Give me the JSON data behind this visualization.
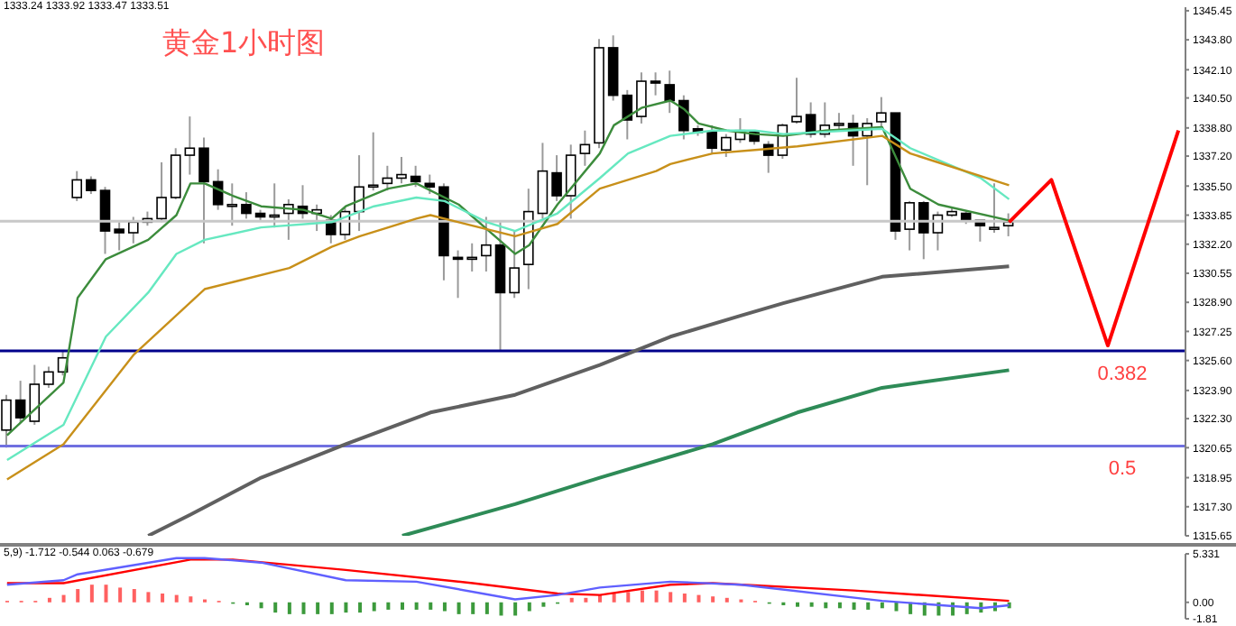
{
  "chart_data": [
    {
      "type": "candlestick",
      "title": "黄金1小时图",
      "annotations": [
        "1333.24 1333.92 1333.47 1333.51",
        {
          "text": "0.382",
          "y": 1326.15
        },
        {
          "text": "0.5",
          "y": 1320.75
        }
      ],
      "tick_labels": "y",
      "categories": [
        null,
        null,
        null,
        null,
        null,
        null,
        null,
        null,
        null,
        null,
        null,
        null,
        null,
        null,
        null,
        null,
        null,
        null,
        null,
        null,
        null,
        null,
        null,
        null,
        null,
        null,
        null,
        null,
        null,
        null,
        null,
        null,
        null,
        null,
        null,
        null,
        null,
        null,
        null,
        null,
        null,
        null,
        null,
        null,
        null,
        null,
        null,
        null,
        null,
        null,
        null,
        null,
        null,
        null,
        null,
        null,
        null,
        null,
        null,
        null,
        null,
        null,
        null,
        null,
        null,
        null,
        null,
        null,
        null,
        null,
        null,
        null,
        null,
        null,
        null,
        null,
        null,
        null,
        null,
        null,
        null,
        null,
        null,
        null
      ],
      "ohlc": [
        [
          1321.65,
          1323.65,
          1320.65,
          1323.35
        ],
        [
          1323.35,
          1324.45,
          1322.05,
          1322.35
        ],
        [
          1322.15,
          1325.35,
          1321.95,
          1324.25
        ],
        [
          1324.25,
          1325.25,
          1324.05,
          1324.95
        ],
        [
          1324.95,
          1326.15,
          1324.75,
          1325.75
        ],
        [
          1334.85,
          1336.35,
          1334.65,
          1335.85
        ],
        [
          1335.85,
          1336.05,
          1335.05,
          1335.25
        ],
        [
          1335.25,
          1335.45,
          1331.65,
          1332.95
        ],
        [
          1333.05,
          1333.45,
          1331.85,
          1332.85
        ],
        [
          1332.85,
          1333.75,
          1332.25,
          1333.45
        ],
        [
          1333.45,
          1334.05,
          1333.25,
          1333.65
        ],
        [
          1333.65,
          1336.85,
          1333.45,
          1334.85
        ],
        [
          1334.85,
          1337.65,
          1334.75,
          1337.25
        ],
        [
          1337.25,
          1339.45,
          1336.15,
          1337.65
        ],
        [
          1337.65,
          1338.25,
          1332.25,
          1335.75
        ],
        [
          1335.75,
          1336.45,
          1334.15,
          1334.45
        ],
        [
          1334.45,
          1335.65,
          1333.25,
          1334.45
        ],
        [
          1334.45,
          1335.15,
          1333.65,
          1333.95
        ],
        [
          1333.95,
          1334.15,
          1333.55,
          1333.75
        ],
        [
          1333.75,
          1335.65,
          1333.15,
          1333.85
        ],
        [
          1333.95,
          1334.75,
          1332.45,
          1334.45
        ],
        [
          1334.35,
          1335.55,
          1333.65,
          1333.95
        ],
        [
          1333.95,
          1334.45,
          1332.95,
          1334.15
        ],
        [
          1333.55,
          1333.85,
          1332.25,
          1332.75
        ],
        [
          1332.75,
          1334.25,
          1332.45,
          1334.05
        ],
        [
          1334.05,
          1337.25,
          1332.95,
          1335.45
        ],
        [
          1335.45,
          1338.55,
          1335.25,
          1335.55
        ],
        [
          1335.65,
          1336.65,
          1335.25,
          1335.95
        ],
        [
          1335.95,
          1337.15,
          1335.65,
          1336.15
        ],
        [
          1336.05,
          1336.65,
          1335.45,
          1335.75
        ],
        [
          1335.65,
          1336.15,
          1335.05,
          1335.45
        ],
        [
          1335.45,
          1335.65,
          1330.15,
          1331.55
        ],
        [
          1331.45,
          1331.85,
          1329.15,
          1331.35
        ],
        [
          1331.35,
          1332.25,
          1330.65,
          1331.45
        ],
        [
          1331.55,
          1333.75,
          1330.65,
          1332.15
        ],
        [
          1332.15,
          1333.45,
          1326.15,
          1329.45
        ],
        [
          1329.45,
          1332.95,
          1329.15,
          1330.85
        ],
        [
          1331.05,
          1335.35,
          1329.65,
          1334.05
        ],
        [
          1333.95,
          1337.95,
          1333.65,
          1336.35
        ],
        [
          1336.25,
          1337.25,
          1334.65,
          1334.95
        ],
        [
          1334.95,
          1337.85,
          1333.65,
          1337.25
        ],
        [
          1337.35,
          1338.65,
          1336.65,
          1337.85
        ],
        [
          1337.95,
          1343.85,
          1337.65,
          1343.35
        ],
        [
          1343.35,
          1344.05,
          1340.35,
          1340.65
        ],
        [
          1340.65,
          1340.95,
          1338.15,
          1339.25
        ],
        [
          1339.45,
          1341.95,
          1339.05,
          1341.45
        ],
        [
          1341.45,
          1341.95,
          1340.65,
          1341.35
        ],
        [
          1341.25,
          1342.05,
          1339.65,
          1340.35
        ],
        [
          1340.35,
          1340.65,
          1338.15,
          1338.65
        ],
        [
          1338.75,
          1338.95,
          1338.35,
          1338.55
        ],
        [
          1338.55,
          1338.95,
          1337.35,
          1337.65
        ],
        [
          1337.55,
          1338.45,
          1337.15,
          1338.25
        ],
        [
          1338.15,
          1339.35,
          1337.95,
          1338.65
        ],
        [
          1338.55,
          1338.65,
          1337.85,
          1338.05
        ],
        [
          1337.85,
          1338.05,
          1336.25,
          1337.25
        ],
        [
          1337.25,
          1339.05,
          1337.05,
          1338.95
        ],
        [
          1339.15,
          1341.65,
          1339.05,
          1339.45
        ],
        [
          1339.55,
          1340.25,
          1338.25,
          1338.45
        ],
        [
          1338.45,
          1340.25,
          1338.25,
          1338.95
        ],
        [
          1339.05,
          1339.65,
          1338.65,
          1339.05
        ],
        [
          1339.05,
          1339.55,
          1336.65,
          1338.35
        ],
        [
          1338.35,
          1339.35,
          1335.55,
          1339.05
        ],
        [
          1339.15,
          1340.55,
          1338.85,
          1339.65
        ],
        [
          1339.65,
          1339.65,
          1332.45,
          1332.95
        ],
        [
          1333.05,
          1334.65,
          1331.85,
          1334.55
        ],
        [
          1334.55,
          1334.65,
          1331.35,
          1332.85
        ],
        [
          1332.85,
          1334.05,
          1331.85,
          1333.85
        ],
        [
          1333.85,
          1334.25,
          1333.75,
          1334.05
        ],
        [
          1333.95,
          1334.05,
          1333.35,
          1333.55
        ],
        [
          1333.55,
          1333.55,
          1332.35,
          1333.25
        ],
        [
          1333.15,
          1335.65,
          1332.85,
          1333.15
        ],
        [
          1333.25,
          1333.95,
          1332.65,
          1333.45
        ],
        null,
        null,
        null,
        null,
        null,
        null,
        null,
        null,
        null,
        null,
        null,
        null
      ],
      "series": [
        {
          "type": "line",
          "color": "#3c8c3c",
          "values": [
            1321.35,
            null,
            null,
            null,
            1324.35,
            1329.15,
            null,
            1331.35,
            null,
            null,
            1332.45,
            null,
            1333.85,
            1335.65,
            1335.65,
            null,
            1334.95,
            null,
            1334.35,
            null,
            null,
            1334.15,
            null,
            1333.65,
            1334.35,
            null,
            null,
            1335.35,
            null,
            1335.65,
            null,
            null,
            1334.45,
            null,
            null,
            null,
            1331.65,
            1332.15,
            null,
            1334.45,
            null,
            null,
            1337.35,
            1338.95,
            null,
            1339.95,
            null,
            1340.35,
            1339.85,
            1339.05,
            null,
            1338.65,
            null,
            1338.45,
            null,
            1338.35,
            null,
            null,
            1338.65,
            null,
            null,
            null,
            1338.85,
            null,
            1335.35,
            null,
            1334.45,
            null,
            null,
            null,
            null,
            1333.55,
            null,
            null,
            null,
            null,
            null,
            null,
            null,
            null,
            null,
            null,
            null,
            null
          ]
        },
        {
          "type": "line",
          "color": "#66e8c0",
          "values": [
            1319.95,
            null,
            null,
            null,
            1321.95,
            null,
            null,
            1326.95,
            null,
            null,
            1329.45,
            null,
            1331.65,
            null,
            1332.45,
            null,
            null,
            null,
            1333.15,
            null,
            null,
            null,
            null,
            1333.45,
            null,
            null,
            1334.35,
            null,
            null,
            1334.85,
            null,
            1334.65,
            null,
            null,
            1333.45,
            null,
            1332.95,
            null,
            null,
            1333.95,
            null,
            null,
            1335.95,
            null,
            1337.35,
            null,
            null,
            1338.35,
            null,
            null,
            1338.65,
            null,
            null,
            1338.65,
            null,
            1338.45,
            null,
            null,
            null,
            null,
            null,
            null,
            1338.75,
            null,
            1337.65,
            null,
            null,
            null,
            null,
            1335.95,
            null,
            1334.75,
            null,
            null,
            null,
            null,
            null,
            null,
            null,
            null,
            null,
            null,
            null,
            null
          ]
        },
        {
          "type": "line",
          "color": "#c8901a",
          "values": [
            1318.85,
            null,
            null,
            null,
            1320.85,
            null,
            null,
            null,
            null,
            1325.95,
            null,
            null,
            null,
            null,
            1329.65,
            null,
            1330.05,
            null,
            null,
            null,
            1330.85,
            null,
            null,
            1332.05,
            null,
            1332.65,
            null,
            null,
            null,
            1333.65,
            1333.85,
            null,
            1333.45,
            null,
            null,
            null,
            1332.65,
            null,
            null,
            1333.35,
            null,
            null,
            1335.35,
            null,
            null,
            null,
            1336.35,
            1336.75,
            null,
            null,
            1337.35,
            null,
            null,
            1337.55,
            null,
            null,
            1337.75,
            null,
            null,
            null,
            null,
            null,
            1338.35,
            null,
            1337.35,
            null,
            null,
            null,
            null,
            null,
            null,
            1335.55,
            null,
            null,
            null,
            null,
            null,
            null,
            null,
            null,
            null,
            null,
            null,
            null
          ]
        },
        {
          "type": "line",
          "color": "#606060",
          "values": [
            null,
            null,
            null,
            null,
            null,
            null,
            null,
            null,
            null,
            null,
            1315.65,
            null,
            null,
            1316.85,
            null,
            null,
            null,
            null,
            1318.95,
            null,
            null,
            null,
            null,
            null,
            1320.85,
            null,
            null,
            null,
            null,
            null,
            1322.65,
            null,
            null,
            null,
            null,
            null,
            1323.65,
            null,
            null,
            null,
            null,
            null,
            1325.35,
            null,
            null,
            null,
            null,
            1326.95,
            null,
            null,
            null,
            null,
            1328.15,
            null,
            null,
            1328.85,
            null,
            null,
            null,
            null,
            null,
            null,
            1330.35,
            null,
            null,
            null,
            null,
            null,
            null,
            null,
            null,
            1330.95,
            null,
            null,
            null,
            null,
            null,
            null,
            null,
            null,
            null,
            null,
            null,
            null
          ]
        },
        {
          "type": "line",
          "color": "#2e8b57",
          "values": [
            null,
            null,
            null,
            null,
            null,
            null,
            null,
            null,
            null,
            null,
            null,
            null,
            null,
            null,
            null,
            null,
            null,
            null,
            null,
            null,
            null,
            null,
            null,
            null,
            null,
            null,
            null,
            null,
            1315.65,
            null,
            null,
            null,
            null,
            null,
            null,
            null,
            1317.45,
            null,
            null,
            null,
            null,
            null,
            1318.95,
            null,
            null,
            null,
            null,
            null,
            null,
            null,
            1320.85,
            null,
            null,
            null,
            null,
            null,
            1322.65,
            null,
            null,
            null,
            null,
            null,
            1324.05,
            null,
            null,
            null,
            null,
            null,
            null,
            null,
            null,
            1325.05,
            null,
            null,
            null,
            null,
            null,
            null,
            null,
            null,
            null,
            null,
            null,
            null
          ]
        },
        {
          "type": "line",
          "color": "#ff0000",
          "values": [
            null,
            null,
            null,
            null,
            null,
            null,
            null,
            null,
            null,
            null,
            null,
            null,
            null,
            null,
            null,
            null,
            null,
            null,
            null,
            null,
            null,
            null,
            null,
            null,
            null,
            null,
            null,
            null,
            null,
            null,
            null,
            null,
            null,
            null,
            null,
            null,
            null,
            null,
            null,
            null,
            null,
            null,
            null,
            null,
            null,
            null,
            null,
            null,
            null,
            null,
            null,
            null,
            null,
            null,
            null,
            null,
            null,
            null,
            null,
            null,
            null,
            null,
            null,
            null,
            null,
            null,
            null,
            null,
            null,
            null,
            null,
            1333.45,
            null,
            null,
            1335.85,
            null,
            null,
            null,
            1326.45,
            null,
            null,
            null,
            null,
            1338.65
          ]
        }
      ],
      "ylim": [
        1315.65,
        1345.65
      ],
      "yticks": [
        1345.45,
        {
          "value": 1343.8,
          "label": "1343.80"
        },
        {
          "value": 1342.1,
          "label": "1342.10"
        },
        {
          "value": 1340.5,
          "label": "1340.50"
        },
        {
          "value": 1338.8,
          "label": "1338.80"
        },
        {
          "value": 1337.2,
          "label": "1337.20"
        },
        {
          "value": 1335.5,
          "label": "1335.50"
        },
        1333.85,
        {
          "value": 1332.2,
          "label": "1332.20"
        },
        1330.55,
        {
          "value": 1328.9,
          "label": "1328.90"
        },
        1327.25,
        {
          "value": 1325.6,
          "label": "1325.60"
        },
        {
          "value": 1323.9,
          "label": "1323.90"
        },
        {
          "value": 1322.3,
          "label": "1322.30"
        },
        1320.65,
        1318.95,
        {
          "value": 1317.3,
          "label": "1317.30"
        },
        1315.65
      ],
      "ref_lines": [
        {
          "axis": "y",
          "value": 1333.51,
          "color": "#c8c8c8"
        },
        {
          "axis": "y",
          "value": 1326.15,
          "color": "#00008b"
        },
        {
          "axis": "y",
          "value": 1320.75,
          "color": "#7070e0"
        }
      ]
    },
    {
      "type": "bar",
      "annotations": [
        "5,9) -1.712 -0.544 0.063 -0.679"
      ],
      "tick_labels": "y",
      "categories": [
        null,
        null,
        null,
        null,
        null,
        null,
        null,
        null,
        null,
        null,
        null,
        null,
        null,
        null,
        null,
        null,
        null,
        null,
        null,
        null,
        null,
        null,
        null,
        null,
        null,
        null,
        null,
        null,
        null,
        null,
        null,
        null,
        null,
        null,
        null,
        null,
        null,
        null,
        null,
        null,
        null,
        null,
        null,
        null,
        null,
        null,
        null,
        null,
        null,
        null,
        null,
        null,
        null,
        null,
        null,
        null,
        null,
        null,
        null,
        null,
        null,
        null,
        null,
        null,
        null,
        null,
        null,
        null,
        null,
        null,
        null,
        null,
        null,
        null,
        null,
        null,
        null,
        null,
        null,
        null,
        null,
        null,
        null,
        null
      ],
      "series": [
        {
          "type": "bar",
          "values": [
            0.16,
            0.16,
            0.16,
            0.49,
            0.81,
            1.46,
            1.94,
            1.94,
            1.62,
            1.46,
            1.13,
            0.97,
            0.81,
            0.65,
            0.32,
            0.16,
            -0.16,
            -0.32,
            -0.65,
            -1.13,
            -1.3,
            -1.3,
            -1.3,
            -1.3,
            -1.13,
            -1.13,
            -0.97,
            -0.81,
            -0.81,
            -0.81,
            -0.81,
            -0.97,
            -1.3,
            -1.3,
            -1.3,
            -1.46,
            -1.46,
            -0.97,
            -0.49,
            -0.16,
            0.49,
            0.49,
            0.81,
            0.97,
            1.13,
            1.3,
            1.3,
            1.13,
            0.97,
            0.81,
            0.65,
            0.49,
            0.32,
            0.16,
            -0.16,
            -0.32,
            -0.49,
            -0.49,
            -0.65,
            -0.65,
            -0.81,
            -0.81,
            -0.65,
            -0.97,
            -1.3,
            -1.46,
            -1.46,
            -1.46,
            -1.3,
            -1.13,
            -0.97,
            -0.65,
            null,
            null,
            null,
            null,
            null,
            null,
            null,
            null,
            null,
            null,
            null,
            null
          ],
          "colors": [
            "#ff6060",
            "#ff6060",
            "#ff6060",
            "#ff6060",
            "#ff6060",
            "#ff6060",
            "#ff6060",
            "#ff6060",
            "#ff6060",
            "#ff6060",
            "#ff6060",
            "#ff6060",
            "#ff6060",
            "#ff6060",
            "#ff6060",
            "#ff6060",
            "#3c9a3c",
            "#3c9a3c",
            "#3c9a3c",
            "#3c9a3c",
            "#3c9a3c",
            "#3c9a3c",
            "#3c9a3c",
            "#3c9a3c",
            "#3c9a3c",
            "#3c9a3c",
            "#3c9a3c",
            "#3c9a3c",
            "#3c9a3c",
            "#3c9a3c",
            "#3c9a3c",
            "#3c9a3c",
            "#3c9a3c",
            "#3c9a3c",
            "#3c9a3c",
            "#3c9a3c",
            "#3c9a3c",
            "#3c9a3c",
            "#3c9a3c",
            "#3c9a3c",
            "#ff6060",
            "#ff6060",
            "#ff6060",
            "#ff6060",
            "#ff6060",
            "#ff6060",
            "#ff6060",
            "#ff6060",
            "#ff6060",
            "#ff6060",
            "#ff6060",
            "#ff6060",
            "#ff6060",
            "#ff6060",
            "#3c9a3c",
            "#3c9a3c",
            "#3c9a3c",
            "#3c9a3c",
            "#3c9a3c",
            "#3c9a3c",
            "#3c9a3c",
            "#3c9a3c",
            "#3c9a3c",
            "#3c9a3c",
            "#3c9a3c",
            "#3c9a3c",
            "#3c9a3c",
            "#3c9a3c",
            "#3c9a3c",
            "#3c9a3c",
            "#3c9a3c",
            "#3c9a3c",
            "#3c9a3c",
            "#3c9a3c",
            "#3c9a3c",
            "#3c9a3c",
            "#3c9a3c",
            "#3c9a3c",
            "#3c9a3c",
            "#3c9a3c",
            "#3c9a3c",
            "#3c9a3c",
            "#3c9a3c",
            "#3c9a3c"
          ]
        },
        {
          "type": "line",
          "color": "#ff0000",
          "values": [
            2.11,
            null,
            null,
            null,
            2.11,
            null,
            null,
            null,
            null,
            null,
            null,
            null,
            null,
            4.7,
            null,
            null,
            4.7,
            null,
            null,
            null,
            null,
            null,
            null,
            null,
            3.56,
            null,
            null,
            null,
            null,
            null,
            null,
            null,
            null,
            2.11,
            null,
            null,
            null,
            null,
            null,
            0.97,
            null,
            null,
            0.81,
            null,
            null,
            null,
            null,
            1.94,
            null,
            null,
            2.11,
            null,
            null,
            null,
            null,
            null,
            null,
            null,
            null,
            null,
            1.3,
            null,
            null,
            null,
            null,
            null,
            null,
            null,
            null,
            null,
            null,
            0.16,
            null,
            null,
            null,
            null,
            null,
            null,
            null,
            null,
            null,
            null,
            null,
            null
          ]
        },
        {
          "type": "line",
          "color": "#6060ff",
          "values": [
            1.94,
            null,
            null,
            null,
            2.43,
            3.08,
            null,
            null,
            null,
            null,
            null,
            null,
            4.86,
            null,
            4.86,
            null,
            null,
            null,
            4.37,
            null,
            null,
            null,
            null,
            null,
            2.43,
            null,
            null,
            null,
            null,
            2.27,
            null,
            null,
            null,
            null,
            null,
            null,
            0.32,
            null,
            null,
            0.81,
            null,
            null,
            1.62,
            null,
            null,
            null,
            null,
            2.27,
            null,
            null,
            null,
            null,
            1.94,
            null,
            null,
            null,
            null,
            null,
            null,
            null,
            null,
            null,
            0.16,
            null,
            null,
            null,
            null,
            null,
            null,
            -0.65,
            null,
            -0.32,
            null,
            null,
            null,
            null,
            null,
            null,
            null,
            null,
            null,
            null,
            null,
            null
          ]
        }
      ],
      "ylim": [
        -1.81,
        5.331
      ],
      "yticks": [
        5.331,
        {
          "value": 0,
          "label": "0.00"
        },
        -1.81
      ]
    }
  ]
}
